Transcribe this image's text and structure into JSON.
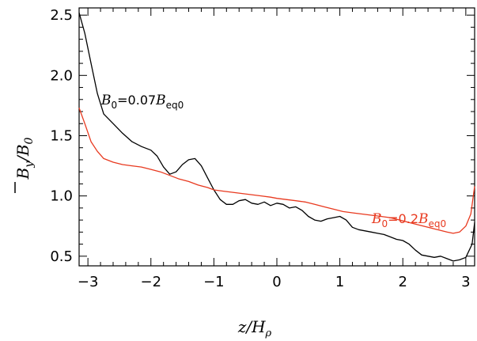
{
  "chart_data": {
    "type": "line",
    "xlabel": "z/H",
    "xlabel_sub": "ρ",
    "ylabel": "B",
    "ylabel_sub": "y",
    "ylabel_den": "/B",
    "ylabel_den_sub": "0",
    "xlim": [
      -3.14,
      3.14
    ],
    "ylim": [
      0.42,
      2.56
    ],
    "xticks": [
      -3,
      -2,
      -1,
      0,
      1,
      2,
      3
    ],
    "xtick_labels": [
      "−3",
      "−2",
      "−1",
      "0",
      "1",
      "2",
      "3"
    ],
    "yticks": [
      0.5,
      1.0,
      1.5,
      2.0,
      2.5
    ],
    "ytick_labels": [
      "0.5",
      "1.0",
      "1.5",
      "2.0",
      "2.5"
    ],
    "grid": false,
    "series": [
      {
        "name": "B0=0.07Beq0",
        "label_main": "B",
        "label_sub": "0",
        "label_mid": "=0.07",
        "label_main2": "B",
        "label_sub2": "eq0",
        "color": "#000000",
        "x": [
          -3.14,
          -3.05,
          -2.95,
          -2.85,
          -2.75,
          -2.6,
          -2.45,
          -2.3,
          -2.15,
          -2.0,
          -1.9,
          -1.8,
          -1.7,
          -1.6,
          -1.5,
          -1.4,
          -1.3,
          -1.2,
          -1.1,
          -1.0,
          -0.9,
          -0.8,
          -0.7,
          -0.6,
          -0.5,
          -0.4,
          -0.3,
          -0.2,
          -0.1,
          0.0,
          0.1,
          0.2,
          0.3,
          0.4,
          0.5,
          0.6,
          0.7,
          0.8,
          0.9,
          1.0,
          1.1,
          1.2,
          1.3,
          1.4,
          1.5,
          1.6,
          1.7,
          1.8,
          1.9,
          2.0,
          2.1,
          2.2,
          2.3,
          2.4,
          2.5,
          2.6,
          2.7,
          2.8,
          2.9,
          3.0,
          3.1,
          3.14
        ],
        "y": [
          2.52,
          2.35,
          2.1,
          1.85,
          1.68,
          1.6,
          1.52,
          1.45,
          1.41,
          1.38,
          1.33,
          1.24,
          1.18,
          1.2,
          1.26,
          1.3,
          1.31,
          1.25,
          1.15,
          1.05,
          0.97,
          0.93,
          0.93,
          0.96,
          0.97,
          0.94,
          0.93,
          0.95,
          0.92,
          0.94,
          0.93,
          0.9,
          0.91,
          0.88,
          0.83,
          0.8,
          0.79,
          0.81,
          0.82,
          0.83,
          0.8,
          0.74,
          0.72,
          0.71,
          0.7,
          0.69,
          0.68,
          0.66,
          0.64,
          0.63,
          0.6,
          0.55,
          0.51,
          0.5,
          0.49,
          0.5,
          0.48,
          0.46,
          0.47,
          0.49,
          0.6,
          0.78
        ]
      },
      {
        "name": "B0=0.2Beq0",
        "label_main": "B",
        "label_sub": "0",
        "label_mid": "=0.2",
        "label_main2": "B",
        "label_sub2": "eq0",
        "color": "#e8391f",
        "x": [
          -3.14,
          -3.05,
          -2.95,
          -2.85,
          -2.75,
          -2.6,
          -2.45,
          -2.3,
          -2.15,
          -2.0,
          -1.85,
          -1.7,
          -1.55,
          -1.4,
          -1.25,
          -1.1,
          -1.0,
          -0.85,
          -0.7,
          -0.55,
          -0.4,
          -0.25,
          -0.1,
          0.0,
          0.15,
          0.3,
          0.45,
          0.6,
          0.75,
          0.9,
          1.05,
          1.2,
          1.35,
          1.5,
          1.65,
          1.8,
          1.95,
          2.1,
          2.25,
          2.4,
          2.55,
          2.7,
          2.8,
          2.9,
          3.0,
          3.08,
          3.14
        ],
        "y": [
          1.73,
          1.6,
          1.45,
          1.37,
          1.31,
          1.28,
          1.26,
          1.25,
          1.24,
          1.22,
          1.2,
          1.17,
          1.14,
          1.12,
          1.09,
          1.07,
          1.05,
          1.04,
          1.03,
          1.02,
          1.01,
          1.0,
          0.99,
          0.98,
          0.97,
          0.96,
          0.95,
          0.93,
          0.91,
          0.89,
          0.87,
          0.86,
          0.85,
          0.84,
          0.83,
          0.82,
          0.8,
          0.78,
          0.76,
          0.74,
          0.72,
          0.7,
          0.69,
          0.7,
          0.75,
          0.85,
          1.08
        ]
      }
    ]
  }
}
